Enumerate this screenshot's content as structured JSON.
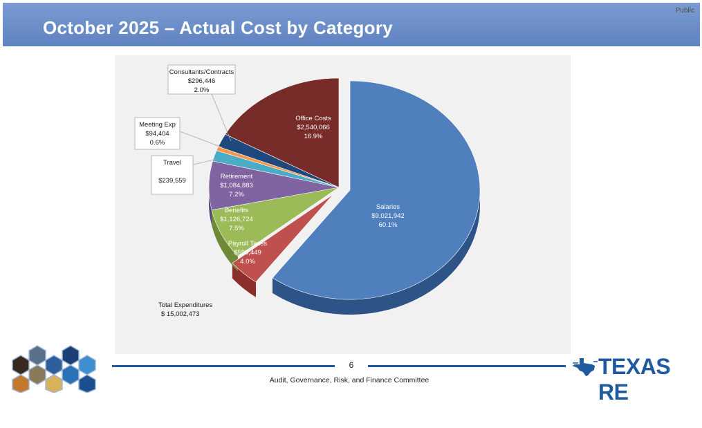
{
  "header": {
    "title": "October 2025 – Actual Cost by Category",
    "classification": "Public",
    "background_color": "#6b8fca"
  },
  "chart_data": {
    "type": "pie",
    "title": "",
    "total_label": "Total Expenditures",
    "total_value": "$ 15,002,473",
    "slices": [
      {
        "name": "Salaries",
        "value_label": "$9,021,942",
        "percent_label": "60.1%",
        "percent": 60.1,
        "color": "#4f7fbd",
        "side_color": "#2e5386"
      },
      {
        "name": "Payroll Taxes",
        "value_label": "$598,449",
        "percent_label": "4.0%",
        "percent": 4.0,
        "color": "#c0504d",
        "side_color": "#8b2f2d"
      },
      {
        "name": "Benefits",
        "value_label": "$1,126,724",
        "percent_label": "7.5%",
        "percent": 7.5,
        "color": "#9bbb59",
        "side_color": "#6e8a38"
      },
      {
        "name": "Retirement",
        "value_label": "$1,084,883",
        "percent_label": "7.2%",
        "percent": 7.2,
        "color": "#8064a2",
        "side_color": "#57427a"
      },
      {
        "name": "Travel",
        "value_label": "$239,559",
        "percent_label": "",
        "percent": 1.6,
        "color": "#4bacc6",
        "side_color": "#2e7f96"
      },
      {
        "name": "Meeting Exp",
        "value_label": "$94,404",
        "percent_label": "0.6%",
        "percent": 0.6,
        "color": "#f79646",
        "side_color": "#b86a29"
      },
      {
        "name": "Consultants/Contracts",
        "value_label": "$296,446",
        "percent_label": "2.0%",
        "percent": 2.0,
        "color": "#1f497d",
        "side_color": "#132d4e"
      },
      {
        "name": "Office Costs",
        "value_label": "$2,540,066",
        "percent_label": "16.9%",
        "percent": 16.9,
        "color": "#772c2a",
        "side_color": "#4f1c1b"
      }
    ]
  },
  "footer": {
    "page_number": "6",
    "committee": "Audit, Governance, Risk, and Finance Committee",
    "brand": "TEXAS RE",
    "brand_color": "#1f5a9e"
  }
}
